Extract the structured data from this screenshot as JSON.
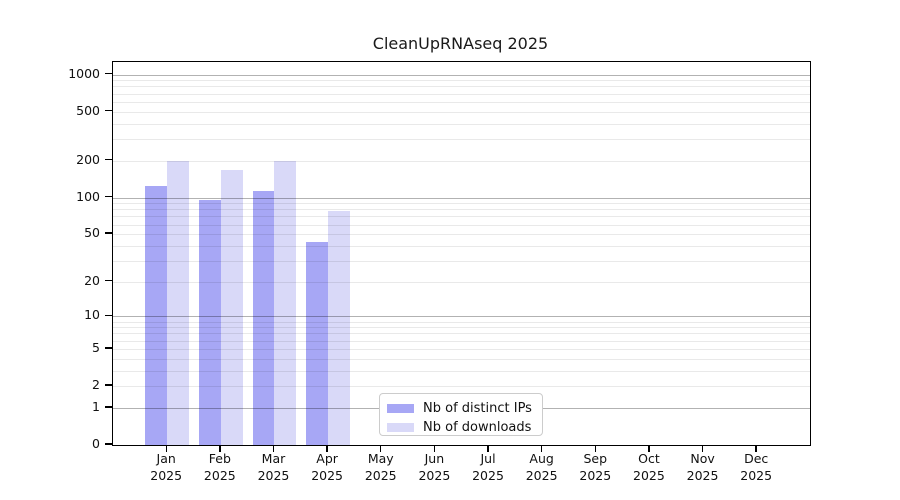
{
  "chart_data": {
    "type": "bar",
    "title": "CleanUpRNAseq 2025",
    "categories": [
      "Jan 2025",
      "Feb 2025",
      "Mar 2025",
      "Apr 2025",
      "May 2025",
      "Jun 2025",
      "Jul 2025",
      "Aug 2025",
      "Sep 2025",
      "Oct 2025",
      "Nov 2025",
      "Dec 2025"
    ],
    "series": [
      {
        "name": "Nb of distinct IPs",
        "color": "#a7a7f5",
        "values": [
          124,
          95,
          112,
          43,
          null,
          null,
          null,
          null,
          null,
          null,
          null,
          null
        ]
      },
      {
        "name": "Nb of downloads",
        "color": "#d9d9f8",
        "values": [
          200,
          168,
          200,
          78,
          null,
          null,
          null,
          null,
          null,
          null,
          null,
          null
        ]
      }
    ],
    "yticks": [
      0,
      1,
      2,
      5,
      10,
      20,
      50,
      100,
      200,
      500,
      1000
    ],
    "ylim": [
      0,
      1265
    ],
    "yscale": "log1p",
    "xlabel": "",
    "ylabel": "",
    "grid": "on",
    "legend_position": "lower center"
  },
  "colors": {
    "bar_distinct_ips": "#a7a7f5",
    "bar_downloads": "#d9d9f8",
    "grid_major": "#b3b3b3",
    "grid_minor": "#e9e9e9",
    "axis": "#000000"
  }
}
